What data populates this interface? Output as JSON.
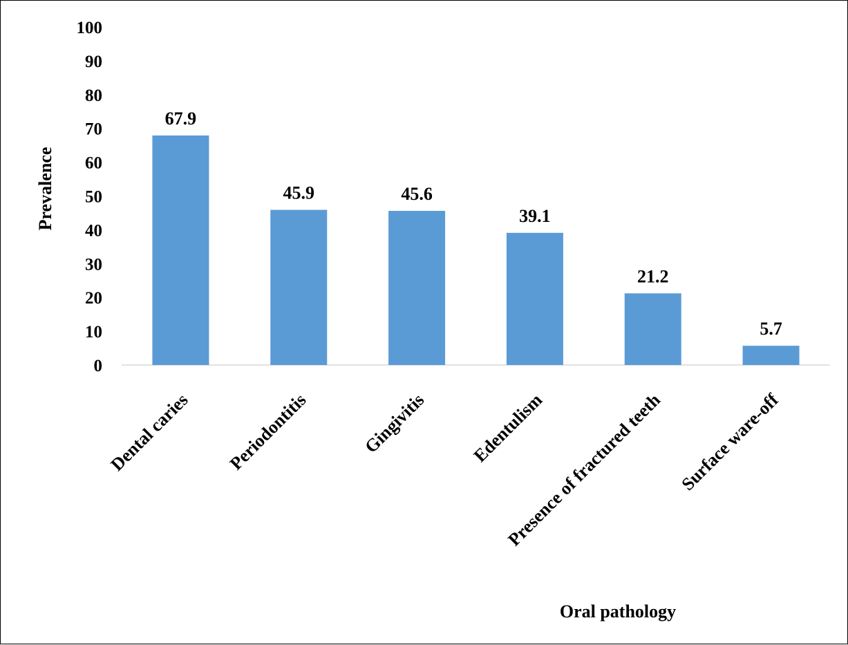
{
  "chart_data": {
    "type": "bar",
    "title": "",
    "xlabel": "Oral pathology",
    "ylabel": "Prevalence",
    "categories": [
      "Dental caries",
      "Periodontitis",
      "Gingivitis",
      "Edentulism",
      "Presence of fractured teeth",
      "Surface ware-off"
    ],
    "values": [
      67.9,
      45.9,
      45.6,
      39.1,
      21.2,
      5.7
    ],
    "data_labels": [
      "67.9",
      "45.9",
      "45.6",
      "39.1",
      "21.2",
      "5.7"
    ],
    "ylim": [
      0,
      100
    ],
    "yticks": [
      "0",
      "10",
      "20",
      "30",
      "40",
      "50",
      "60",
      "70",
      "80",
      "90",
      "100"
    ],
    "grid": false,
    "legend": "none",
    "bar_color": "#5B9BD5"
  }
}
